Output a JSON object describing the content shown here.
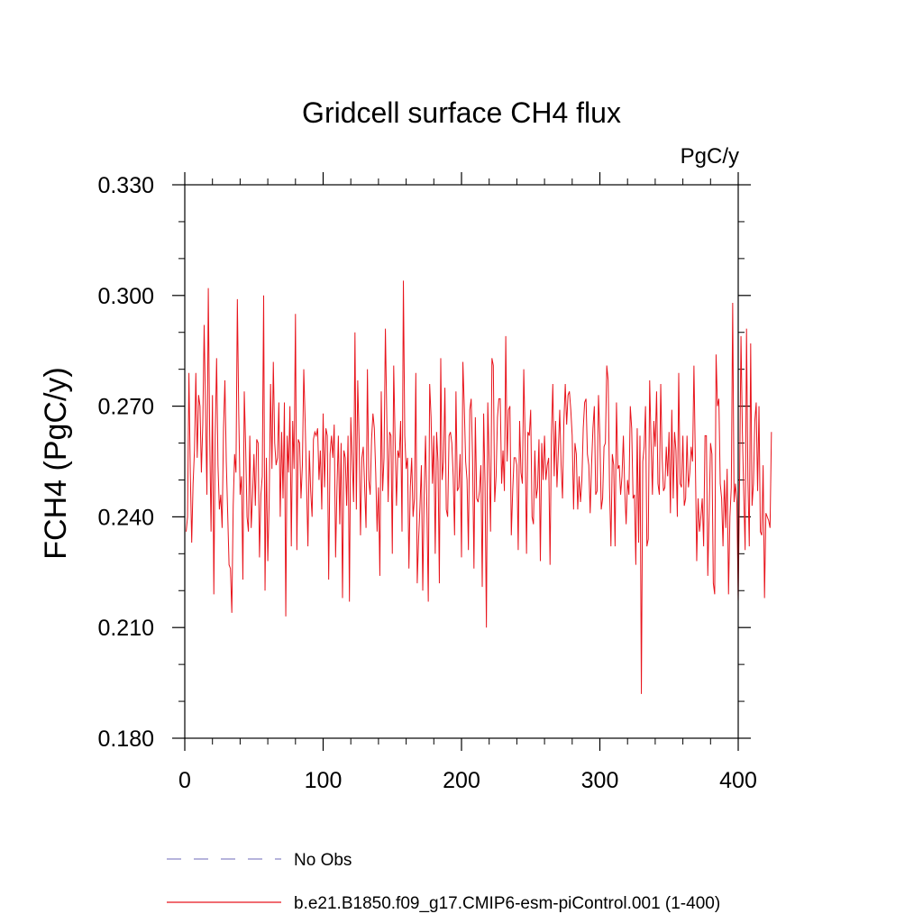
{
  "chart_data": {
    "type": "line",
    "title": "Gridcell surface CH4 flux",
    "units": "PgC/y",
    "ylabel": "FCH4  (PgC/y)",
    "xlabel": "",
    "xlim": [
      0,
      400
    ],
    "ylim": [
      0.18,
      0.33
    ],
    "xticks": [
      0,
      100,
      200,
      300,
      400
    ],
    "xtick_labels": [
      "0",
      "100",
      "200",
      "300",
      "400"
    ],
    "yticks": [
      0.18,
      0.21,
      0.24,
      0.27,
      0.3,
      0.33
    ],
    "ytick_labels": [
      "0.180",
      "0.210",
      "0.240",
      "0.270",
      "0.300",
      "0.330"
    ],
    "legend": [
      {
        "label": "No Obs",
        "style": "dashed",
        "color": "#8a86c8"
      },
      {
        "label": "b.e21.B1850.f09_g17.CMIP6-esm-piControl.001 (1-400)",
        "style": "solid",
        "color": "#e8141c"
      }
    ],
    "series": [
      {
        "name": "b.e21.B1850.f09_g17.CMIP6-esm-piControl.001 (1-400)",
        "color": "#e8141c",
        "x_start": 1,
        "values": [
          0.236,
          0.24,
          0.279,
          0.252,
          0.233,
          0.249,
          0.258,
          0.279,
          0.256,
          0.273,
          0.27,
          0.252,
          0.265,
          0.292,
          0.269,
          0.246,
          0.302,
          0.262,
          0.236,
          0.273,
          0.219,
          0.262,
          0.283,
          0.254,
          0.242,
          0.246,
          0.237,
          0.264,
          0.277,
          0.255,
          0.241,
          0.227,
          0.226,
          0.214,
          0.243,
          0.257,
          0.252,
          0.299,
          0.268,
          0.246,
          0.251,
          0.223,
          0.274,
          0.259,
          0.24,
          0.236,
          0.262,
          0.237,
          0.246,
          0.257,
          0.243,
          0.261,
          0.26,
          0.229,
          0.246,
          0.251,
          0.3,
          0.22,
          0.256,
          0.228,
          0.244,
          0.276,
          0.253,
          0.282,
          0.26,
          0.254,
          0.256,
          0.271,
          0.24,
          0.263,
          0.245,
          0.271,
          0.213,
          0.262,
          0.252,
          0.27,
          0.232,
          0.266,
          0.253,
          0.295,
          0.231,
          0.261,
          0.26,
          0.245,
          0.254,
          0.28,
          0.266,
          0.249,
          0.232,
          0.258,
          0.247,
          0.24,
          0.261,
          0.263,
          0.262,
          0.264,
          0.25,
          0.258,
          0.242,
          0.268,
          0.248,
          0.264,
          0.262,
          0.223,
          0.257,
          0.262,
          0.256,
          0.265,
          0.229,
          0.248,
          0.262,
          0.238,
          0.26,
          0.218,
          0.258,
          0.256,
          0.243,
          0.262,
          0.217,
          0.267,
          0.256,
          0.244,
          0.29,
          0.242,
          0.277,
          0.261,
          0.235,
          0.256,
          0.259,
          0.248,
          0.237,
          0.28,
          0.25,
          0.246,
          0.261,
          0.268,
          0.264,
          0.252,
          0.236,
          0.248,
          0.224,
          0.274,
          0.247,
          0.256,
          0.291,
          0.267,
          0.244,
          0.263,
          0.262,
          0.23,
          0.281,
          0.261,
          0.243,
          0.258,
          0.256,
          0.266,
          0.236,
          0.304,
          0.262,
          0.253,
          0.256,
          0.226,
          0.248,
          0.256,
          0.24,
          0.245,
          0.279,
          0.222,
          0.234,
          0.243,
          0.254,
          0.22,
          0.246,
          0.262,
          0.242,
          0.217,
          0.276,
          0.267,
          0.249,
          0.262,
          0.23,
          0.263,
          0.255,
          0.222,
          0.283,
          0.25,
          0.255,
          0.275,
          0.242,
          0.24,
          0.262,
          0.263,
          0.26,
          0.251,
          0.235,
          0.274,
          0.247,
          0.248,
          0.257,
          0.229,
          0.282,
          0.27,
          0.255,
          0.25,
          0.231,
          0.269,
          0.272,
          0.256,
          0.226,
          0.267,
          0.245,
          0.244,
          0.247,
          0.254,
          0.221,
          0.268,
          0.249,
          0.21,
          0.271,
          0.255,
          0.236,
          0.283,
          0.281,
          0.244,
          0.251,
          0.267,
          0.272,
          0.272,
          0.249,
          0.258,
          0.247,
          0.289,
          0.255,
          0.269,
          0.27,
          0.235,
          0.247,
          0.256,
          0.256,
          0.254,
          0.231,
          0.266,
          0.252,
          0.249,
          0.28,
          0.261,
          0.23,
          0.263,
          0.262,
          0.269,
          0.24,
          0.238,
          0.258,
          0.245,
          0.248,
          0.261,
          0.228,
          0.26,
          0.25,
          0.262,
          0.25,
          0.254,
          0.256,
          0.227,
          0.262,
          0.276,
          0.251,
          0.266,
          0.248,
          0.258,
          0.269,
          0.254,
          0.245,
          0.266,
          0.276,
          0.265,
          0.273,
          0.274,
          0.269,
          0.262,
          0.242,
          0.26,
          0.257,
          0.242,
          0.251,
          0.244,
          0.25,
          0.264,
          0.271,
          0.272,
          0.257,
          0.254,
          0.241,
          0.254,
          0.264,
          0.27,
          0.246,
          0.247,
          0.273,
          0.262,
          0.242,
          0.245,
          0.259,
          0.26,
          0.281,
          0.277,
          0.248,
          0.232,
          0.257,
          0.254,
          0.232,
          0.271,
          0.253,
          0.254,
          0.246,
          0.251,
          0.262,
          0.247,
          0.238,
          0.25,
          0.246,
          0.27,
          0.264,
          0.245,
          0.246,
          0.227,
          0.264,
          0.233,
          0.262,
          0.192,
          0.255,
          0.259,
          0.27,
          0.232,
          0.234,
          0.277,
          0.26,
          0.246,
          0.266,
          0.259,
          0.274,
          0.249,
          0.246,
          0.276,
          0.256,
          0.247,
          0.248,
          0.259,
          0.251,
          0.263,
          0.241,
          0.269,
          0.245,
          0.263,
          0.258,
          0.24,
          0.279,
          0.249,
          0.248,
          0.262,
          0.243,
          0.245,
          0.262,
          0.248,
          0.252,
          0.259,
          0.255,
          0.281,
          0.256,
          0.228,
          0.245,
          0.236,
          0.24,
          0.245,
          0.232,
          0.262,
          0.262,
          0.224,
          0.241,
          0.26,
          0.257,
          0.222,
          0.219,
          0.284,
          0.27,
          0.272,
          0.249,
          0.245,
          0.232,
          0.25,
          0.237,
          0.253,
          0.219,
          0.24,
          0.248,
          0.298,
          0.244,
          0.249,
          0.244,
          0.217,
          0.25,
          0.289,
          0.263,
          0.246,
          0.231,
          0.291,
          0.25,
          0.232,
          0.287,
          0.243,
          0.249,
          0.266,
          0.271,
          0.247,
          0.27,
          0.236,
          0.235,
          0.254,
          0.218,
          0.241,
          0.24,
          0.239,
          0.237,
          0.263
        ]
      }
    ]
  }
}
